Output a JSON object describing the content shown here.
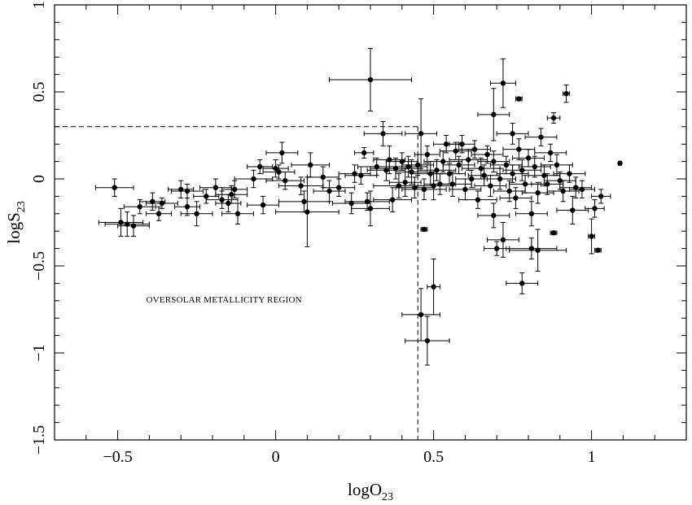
{
  "chart_data": {
    "type": "scatter",
    "xlabel": "logO",
    "xlabel_sub": "23",
    "ylabel": "logS",
    "ylabel_sub": "23",
    "xlim": [
      -0.7,
      1.3
    ],
    "ylim": [
      -1.5,
      1.0
    ],
    "x_ticks": [
      {
        "value": -0.5,
        "label": "−0.5"
      },
      {
        "value": 0,
        "label": "0"
      },
      {
        "value": 0.5,
        "label": "0.5"
      },
      {
        "value": 1,
        "label": "1"
      }
    ],
    "y_ticks": [
      {
        "value": -1.5,
        "label": "−1.5"
      },
      {
        "value": -1,
        "label": "−1"
      },
      {
        "value": -0.5,
        "label": "−0.5"
      },
      {
        "value": 0,
        "label": "0"
      },
      {
        "value": 0.5,
        "label": "0.5"
      },
      {
        "value": 1,
        "label": "1"
      }
    ],
    "annotation": "OVERSOLAR METALLICITY REGION",
    "reference_lines": {
      "x": 0.45,
      "y": 0.3
    },
    "marker_color": "#000000",
    "points": [
      {
        "x": -0.51,
        "y": -0.05,
        "ex": 0.06,
        "ey": 0.05
      },
      {
        "x": -0.49,
        "y": -0.25,
        "ex": 0.07,
        "ey": 0.08
      },
      {
        "x": -0.47,
        "y": -0.26,
        "ex": 0.07,
        "ey": 0.07
      },
      {
        "x": -0.45,
        "y": -0.27,
        "ex": 0.05,
        "ey": 0.06
      },
      {
        "x": -0.43,
        "y": -0.16,
        "ex": 0.05,
        "ey": 0.04
      },
      {
        "x": -0.39,
        "y": -0.13,
        "ex": 0.04,
        "ey": 0.05
      },
      {
        "x": -0.37,
        "y": -0.2,
        "ex": 0.04,
        "ey": 0.04
      },
      {
        "x": -0.36,
        "y": -0.14,
        "ex": 0.05,
        "ey": 0.03
      },
      {
        "x": -0.3,
        "y": -0.06,
        "ex": 0.04,
        "ey": 0.05
      },
      {
        "x": -0.28,
        "y": -0.07,
        "ex": 0.05,
        "ey": 0.04
      },
      {
        "x": -0.28,
        "y": -0.16,
        "ex": 0.04,
        "ey": 0.05
      },
      {
        "x": -0.25,
        "y": -0.2,
        "ex": 0.05,
        "ey": 0.07
      },
      {
        "x": -0.22,
        "y": -0.1,
        "ex": 0.04,
        "ey": 0.04
      },
      {
        "x": -0.19,
        "y": -0.05,
        "ex": 0.05,
        "ey": 0.05
      },
      {
        "x": -0.17,
        "y": -0.12,
        "ex": 0.05,
        "ey": 0.05
      },
      {
        "x": -0.15,
        "y": -0.14,
        "ex": 0.04,
        "ey": 0.05
      },
      {
        "x": -0.14,
        "y": -0.09,
        "ex": 0.05,
        "ey": 0.05
      },
      {
        "x": -0.13,
        "y": -0.06,
        "ex": 0.04,
        "ey": 0.05
      },
      {
        "x": -0.12,
        "y": -0.2,
        "ex": 0.05,
        "ey": 0.06
      },
      {
        "x": -0.07,
        "y": 0.0,
        "ex": 0.06,
        "ey": 0.05
      },
      {
        "x": -0.05,
        "y": 0.07,
        "ex": 0.04,
        "ey": 0.04
      },
      {
        "x": -0.04,
        "y": -0.15,
        "ex": 0.05,
        "ey": 0.05
      },
      {
        "x": 0.0,
        "y": 0.06,
        "ex": 0.04,
        "ey": 0.05
      },
      {
        "x": 0.01,
        "y": 0.04,
        "ex": 0.05,
        "ey": 0.04
      },
      {
        "x": 0.02,
        "y": 0.15,
        "ex": 0.05,
        "ey": 0.06
      },
      {
        "x": 0.03,
        "y": -0.01,
        "ex": 0.06,
        "ey": 0.05
      },
      {
        "x": 0.08,
        "y": -0.04,
        "ex": 0.07,
        "ey": 0.05
      },
      {
        "x": 0.09,
        "y": -0.13,
        "ex": 0.08,
        "ey": 0.06
      },
      {
        "x": 0.1,
        "y": -0.19,
        "ex": 0.1,
        "ey": 0.2
      },
      {
        "x": 0.11,
        "y": 0.08,
        "ex": 0.06,
        "ey": 0.07
      },
      {
        "x": 0.15,
        "y": 0.01,
        "ex": 0.05,
        "ey": 0.06
      },
      {
        "x": 0.17,
        "y": -0.07,
        "ex": 0.05,
        "ey": 0.06
      },
      {
        "x": 0.2,
        "y": -0.05,
        "ex": 0.05,
        "ey": 0.05
      },
      {
        "x": 0.24,
        "y": -0.14,
        "ex": 0.06,
        "ey": 0.06
      },
      {
        "x": 0.25,
        "y": 0.03,
        "ex": 0.05,
        "ey": 0.05
      },
      {
        "x": 0.27,
        "y": 0.02,
        "ex": 0.05,
        "ey": 0.05
      },
      {
        "x": 0.28,
        "y": 0.15,
        "ex": 0.03,
        "ey": 0.03
      },
      {
        "x": 0.29,
        "y": -0.13,
        "ex": 0.07,
        "ey": 0.05
      },
      {
        "x": 0.3,
        "y": -0.17,
        "ex": 0.06,
        "ey": 0.1
      },
      {
        "x": 0.3,
        "y": 0.57,
        "ex": 0.13,
        "ey": 0.18
      },
      {
        "x": 0.32,
        "y": 0.07,
        "ex": 0.06,
        "ey": 0.05
      },
      {
        "x": 0.34,
        "y": 0.26,
        "ex": 0.06,
        "ey": 0.07
      },
      {
        "x": 0.35,
        "y": 0.05,
        "ex": 0.06,
        "ey": 0.06
      },
      {
        "x": 0.36,
        "y": 0.11,
        "ex": 0.05,
        "ey": 0.08
      },
      {
        "x": 0.37,
        "y": -0.12,
        "ex": 0.06,
        "ey": 0.07
      },
      {
        "x": 0.38,
        "y": 0.06,
        "ex": 0.08,
        "ey": 0.06
      },
      {
        "x": 0.39,
        "y": -0.04,
        "ex": 0.08,
        "ey": 0.07
      },
      {
        "x": 0.4,
        "y": 0.1,
        "ex": 0.05,
        "ey": 0.05
      },
      {
        "x": 0.41,
        "y": -0.02,
        "ex": 0.05,
        "ey": 0.08
      },
      {
        "x": 0.42,
        "y": 0.07,
        "ex": 0.06,
        "ey": 0.06
      },
      {
        "x": 0.43,
        "y": 0.04,
        "ex": 0.05,
        "ey": 0.07
      },
      {
        "x": 0.44,
        "y": -0.05,
        "ex": 0.06,
        "ey": 0.06
      },
      {
        "x": 0.45,
        "y": 0.08,
        "ex": 0.05,
        "ey": 0.06
      },
      {
        "x": 0.46,
        "y": 0.26,
        "ex": 0.05,
        "ey": 0.2
      },
      {
        "x": 0.46,
        "y": -0.78,
        "ex": 0.06,
        "ey": 0.15
      },
      {
        "x": 0.47,
        "y": -0.06,
        "ex": 0.07,
        "ey": 0.06
      },
      {
        "x": 0.47,
        "y": -0.29,
        "ex": 0.01,
        "ey": 0.01
      },
      {
        "x": 0.48,
        "y": -0.93,
        "ex": 0.07,
        "ey": 0.14
      },
      {
        "x": 0.48,
        "y": 0.14,
        "ex": 0.04,
        "ey": 0.05
      },
      {
        "x": 0.49,
        "y": 0.03,
        "ex": 0.06,
        "ey": 0.07
      },
      {
        "x": 0.5,
        "y": -0.62,
        "ex": 0.02,
        "ey": 0.16
      },
      {
        "x": 0.5,
        "y": -0.04,
        "ex": 0.06,
        "ey": 0.08
      },
      {
        "x": 0.51,
        "y": 0.05,
        "ex": 0.06,
        "ey": 0.06
      },
      {
        "x": 0.52,
        "y": -0.03,
        "ex": 0.05,
        "ey": 0.06
      },
      {
        "x": 0.53,
        "y": 0.1,
        "ex": 0.06,
        "ey": 0.06
      },
      {
        "x": 0.54,
        "y": 0.2,
        "ex": 0.04,
        "ey": 0.05
      },
      {
        "x": 0.55,
        "y": 0.03,
        "ex": 0.05,
        "ey": 0.06
      },
      {
        "x": 0.56,
        "y": -0.03,
        "ex": 0.06,
        "ey": 0.07
      },
      {
        "x": 0.57,
        "y": 0.16,
        "ex": 0.05,
        "ey": 0.05
      },
      {
        "x": 0.58,
        "y": 0.08,
        "ex": 0.05,
        "ey": 0.05
      },
      {
        "x": 0.59,
        "y": 0.2,
        "ex": 0.04,
        "ey": 0.05
      },
      {
        "x": 0.6,
        "y": -0.06,
        "ex": 0.05,
        "ey": 0.06
      },
      {
        "x": 0.61,
        "y": 0.11,
        "ex": 0.06,
        "ey": 0.06
      },
      {
        "x": 0.62,
        "y": 0.0,
        "ex": 0.05,
        "ey": 0.05
      },
      {
        "x": 0.63,
        "y": 0.17,
        "ex": 0.05,
        "ey": 0.05
      },
      {
        "x": 0.64,
        "y": -0.12,
        "ex": 0.06,
        "ey": 0.05
      },
      {
        "x": 0.65,
        "y": 0.06,
        "ex": 0.06,
        "ey": 0.06
      },
      {
        "x": 0.66,
        "y": 0.02,
        "ex": 0.05,
        "ey": 0.06
      },
      {
        "x": 0.67,
        "y": 0.14,
        "ex": 0.05,
        "ey": 0.05
      },
      {
        "x": 0.68,
        "y": -0.04,
        "ex": 0.05,
        "ey": 0.06
      },
      {
        "x": 0.69,
        "y": -0.21,
        "ex": 0.05,
        "ey": 0.07
      },
      {
        "x": 0.69,
        "y": 0.37,
        "ex": 0.05,
        "ey": 0.15
      },
      {
        "x": 0.69,
        "y": 0.1,
        "ex": 0.05,
        "ey": 0.06
      },
      {
        "x": 0.7,
        "y": -0.4,
        "ex": 0.04,
        "ey": 0.04
      },
      {
        "x": 0.71,
        "y": 0.0,
        "ex": 0.05,
        "ey": 0.06
      },
      {
        "x": 0.72,
        "y": 0.55,
        "ex": 0.04,
        "ey": 0.14
      },
      {
        "x": 0.72,
        "y": -0.35,
        "ex": 0.05,
        "ey": 0.1
      },
      {
        "x": 0.73,
        "y": 0.08,
        "ex": 0.05,
        "ey": 0.05
      },
      {
        "x": 0.74,
        "y": -0.07,
        "ex": 0.05,
        "ey": 0.06
      },
      {
        "x": 0.75,
        "y": 0.26,
        "ex": 0.05,
        "ey": 0.06
      },
      {
        "x": 0.75,
        "y": 0.03,
        "ex": 0.05,
        "ey": 0.05
      },
      {
        "x": 0.76,
        "y": -0.11,
        "ex": 0.05,
        "ey": 0.06
      },
      {
        "x": 0.77,
        "y": 0.46,
        "ex": 0.01,
        "ey": 0.01
      },
      {
        "x": 0.77,
        "y": 0.17,
        "ex": 0.05,
        "ey": 0.06
      },
      {
        "x": 0.78,
        "y": -0.6,
        "ex": 0.05,
        "ey": 0.06
      },
      {
        "x": 0.78,
        "y": 0.05,
        "ex": 0.06,
        "ey": 0.06
      },
      {
        "x": 0.79,
        "y": -0.03,
        "ex": 0.05,
        "ey": 0.05
      },
      {
        "x": 0.8,
        "y": 0.12,
        "ex": 0.05,
        "ey": 0.05
      },
      {
        "x": 0.81,
        "y": -0.4,
        "ex": 0.08,
        "ey": 0.06
      },
      {
        "x": 0.81,
        "y": -0.2,
        "ex": 0.05,
        "ey": 0.07
      },
      {
        "x": 0.82,
        "y": 0.07,
        "ex": 0.05,
        "ey": 0.06
      },
      {
        "x": 0.83,
        "y": -0.08,
        "ex": 0.05,
        "ey": 0.06
      },
      {
        "x": 0.83,
        "y": -0.41,
        "ex": 0.09,
        "ey": 0.12
      },
      {
        "x": 0.84,
        "y": 0.24,
        "ex": 0.05,
        "ey": 0.05
      },
      {
        "x": 0.85,
        "y": 0.02,
        "ex": 0.05,
        "ey": 0.06
      },
      {
        "x": 0.86,
        "y": -0.03,
        "ex": 0.05,
        "ey": 0.06
      },
      {
        "x": 0.87,
        "y": 0.15,
        "ex": 0.05,
        "ey": 0.05
      },
      {
        "x": 0.88,
        "y": 0.35,
        "ex": 0.02,
        "ey": 0.03
      },
      {
        "x": 0.88,
        "y": -0.31,
        "ex": 0.01,
        "ey": 0.01
      },
      {
        "x": 0.89,
        "y": 0.08,
        "ex": 0.05,
        "ey": 0.06
      },
      {
        "x": 0.9,
        "y": -0.01,
        "ex": 0.05,
        "ey": 0.05
      },
      {
        "x": 0.91,
        "y": -0.07,
        "ex": 0.05,
        "ey": 0.06
      },
      {
        "x": 0.92,
        "y": 0.49,
        "ex": 0.01,
        "ey": 0.05
      },
      {
        "x": 0.93,
        "y": 0.03,
        "ex": 0.05,
        "ey": 0.05
      },
      {
        "x": 0.94,
        "y": -0.18,
        "ex": 0.05,
        "ey": 0.08
      },
      {
        "x": 0.95,
        "y": -0.05,
        "ex": 0.05,
        "ey": 0.06
      },
      {
        "x": 0.97,
        "y": -0.06,
        "ex": 0.04,
        "ey": 0.05
      },
      {
        "x": 1.0,
        "y": -0.33,
        "ex": 0.01,
        "ey": 0.1
      },
      {
        "x": 1.01,
        "y": -0.17,
        "ex": 0.03,
        "ey": 0.05
      },
      {
        "x": 1.02,
        "y": -0.41,
        "ex": 0.01,
        "ey": 0.01
      },
      {
        "x": 1.03,
        "y": -0.1,
        "ex": 0.03,
        "ey": 0.04
      },
      {
        "x": 1.09,
        "y": 0.09,
        "ex": 0.005,
        "ey": 0.005
      }
    ]
  }
}
